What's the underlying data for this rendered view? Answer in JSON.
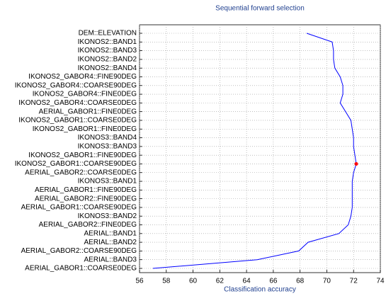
{
  "chart_data": {
    "type": "line",
    "orientation": "horizontal",
    "title": "Sequential forward selection",
    "x_label": "Classification accuracy",
    "categories": [
      "DEM::ELEVATION",
      "IKONOS2::BAND1",
      "IKONOS2::BAND3",
      "IKONOS2::BAND2",
      "IKONOS2::BAND4",
      "IKONOS2_GABOR4::FINE90DEG",
      "IKONOS2_GABOR4::COARSE90DEG",
      "IKONOS2_GABOR4::FINE0DEG",
      "IKONOS2_GABOR4::COARSE0DEG",
      "AERIAL_GABOR1::FINE0DEG",
      "IKONOS2_GABOR1::COARSE0DEG",
      "IKONOS2_GABOR1::FINE0DEG",
      "IKONOS3::BAND4",
      "IKONOS3::BAND3",
      "IKONOS2_GABOR1::FINE90DEG",
      "IKONOS2_GABOR1::COARSE90DEG",
      "AERIAL_GABOR2::COARSE0DEG",
      "IKONOS3::BAND1",
      "AERIAL_GABOR1::FINE90DEG",
      "AERIAL_GABOR2::FINE90DEG",
      "AERIAL_GABOR1::COARSE90DEG",
      "IKONOS3::BAND2",
      "AERIAL_GABOR2::FINE0DEG",
      "AERIAL::BAND1",
      "AERIAL::BAND2",
      "AERIAL_GABOR2::COARSE90DEG",
      "AERIAL::BAND3",
      "AERIAL_GABOR1::COARSE0DEG"
    ],
    "values": [
      68.5,
      70.4,
      70.5,
      70.5,
      70.6,
      71.0,
      71.2,
      71.2,
      71.0,
      71.4,
      71.8,
      71.9,
      72.0,
      72.0,
      72.1,
      72.2,
      72.0,
      71.9,
      71.9,
      71.9,
      71.9,
      71.8,
      71.6,
      70.9,
      68.6,
      67.9,
      64.8,
      57.0
    ],
    "color": "#0000ff",
    "marker": {
      "index": 15,
      "color": "#ff0000"
    },
    "xlim": [
      56,
      74
    ],
    "xticks": [
      56,
      58,
      60,
      62,
      64,
      66,
      68,
      70,
      72,
      74
    ],
    "grid": true
  }
}
